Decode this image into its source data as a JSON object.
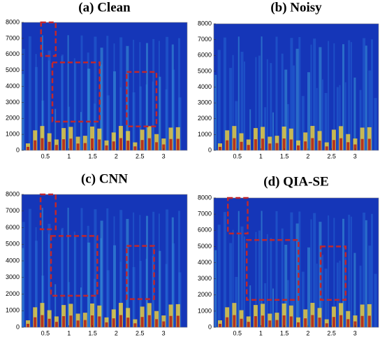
{
  "chart_data": [
    {
      "type": "spectrogram",
      "title": "(a) Clean",
      "xlim": [
        0,
        3.5
      ],
      "ylim": [
        0,
        8000
      ],
      "xticks": [
        0.5,
        1,
        1.5,
        2,
        2.5,
        3
      ],
      "yticks": [
        0,
        1000,
        2000,
        3000,
        4000,
        5000,
        6000,
        7000,
        8000
      ],
      "box_color": "#c0272d",
      "boxes": [
        [
          0.41,
          0.72,
          5900,
          8000
        ],
        [
          0.65,
          1.65,
          1800,
          5500
        ],
        [
          2.22,
          2.85,
          1500,
          4900
        ]
      ]
    },
    {
      "type": "spectrogram",
      "title": "(b) Noisy",
      "xlim": [
        0,
        3.5
      ],
      "ylim": [
        0,
        8000
      ],
      "xticks": [
        0.5,
        1,
        1.5,
        2,
        2.5,
        3
      ],
      "yticks": [
        0,
        1000,
        2000,
        3000,
        4000,
        5000,
        6000,
        7000,
        8000
      ],
      "box_color": "#c0272d",
      "boxes": []
    },
    {
      "type": "spectrogram",
      "title": "(c) CNN",
      "xlim": [
        0,
        3.5
      ],
      "ylim": [
        0,
        8000
      ],
      "xticks": [
        0.5,
        1,
        1.5,
        2,
        2.5,
        3
      ],
      "yticks": [
        0,
        1000,
        2000,
        3000,
        4000,
        5000,
        6000,
        7000,
        8000
      ],
      "box_color": "#c0272d",
      "boxes": [
        [
          0.4,
          0.72,
          5900,
          8000
        ],
        [
          0.62,
          1.6,
          1900,
          5500
        ],
        [
          2.22,
          2.8,
          1700,
          4900
        ]
      ]
    },
    {
      "type": "spectrogram",
      "title": "(d) QIA-SE",
      "xlim": [
        0,
        3.5
      ],
      "ylim": [
        0,
        8000
      ],
      "xticks": [
        0.5,
        1,
        1.5,
        2,
        2.5,
        3
      ],
      "yticks": [
        0,
        1000,
        2000,
        3000,
        4000,
        5000,
        6000,
        7000,
        8000
      ],
      "box_color": "#c0272d",
      "boxes": [
        [
          0.3,
          0.72,
          5800,
          8000
        ],
        [
          0.7,
          1.8,
          1700,
          5400
        ],
        [
          2.27,
          2.8,
          1700,
          5000
        ]
      ]
    }
  ]
}
